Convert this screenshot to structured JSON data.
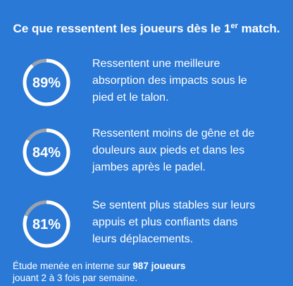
{
  "title": {
    "before": "Ce que ressentent les joueurs dès le 1",
    "sup": "er",
    "after": " match."
  },
  "items": [
    {
      "value": 89,
      "value_label": "89%",
      "lines": [
        "Ressentent une meilleure",
        "absorption des impacts sous le",
        "pied et le talon."
      ]
    },
    {
      "value": 84,
      "value_label": "84%",
      "lines": [
        "Ressentent moins de gêne et de",
        "douleurs aux pieds et dans les",
        "jambes après le padel."
      ]
    },
    {
      "value": 81,
      "value_label": "81%",
      "lines": [
        "Se sentent plus stables sur leurs",
        "appuis et plus confiants dans",
        "leurs déplacements."
      ]
    }
  ],
  "footnote": {
    "before": "Étude menée en interne sur ",
    "bold": "987 joueurs",
    "line2": "jouant 2 à 3 fois par semaine."
  }
}
